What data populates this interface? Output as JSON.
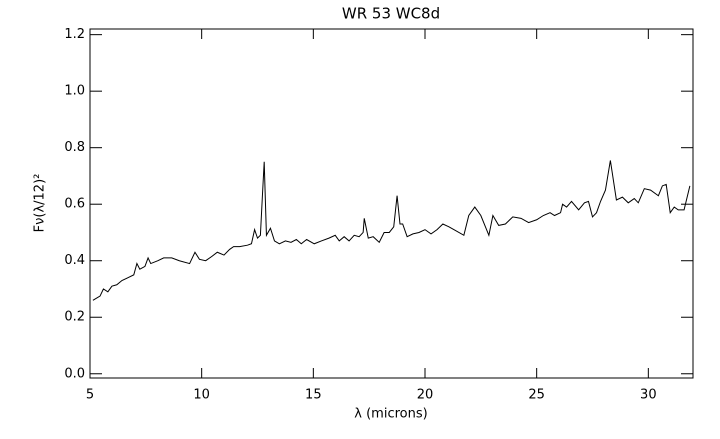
{
  "chart_data": {
    "type": "line",
    "title": "WR 53 WC8d",
    "x_label": "λ (microns)",
    "y_label": "Fν(λ/12)²",
    "xlim": [
      5,
      32
    ],
    "ylim": [
      -0.015,
      1.22
    ],
    "xticks": [
      5,
      10,
      15,
      20,
      25,
      30
    ],
    "yticks": [
      {
        "value": 0,
        "label": "0.0"
      },
      0.2,
      0.4,
      0.6,
      0.8,
      {
        "value": 1,
        "label": "1.0"
      },
      1.2
    ],
    "color": "#000000",
    "x": [
      5.13,
      5.45,
      5.6,
      5.8,
      5.98,
      6.2,
      6.43,
      6.7,
      6.96,
      7.1,
      7.23,
      7.46,
      7.6,
      7.72,
      8.04,
      8.3,
      8.66,
      9.0,
      9.46,
      9.7,
      9.9,
      10.18,
      10.45,
      10.7,
      11.0,
      11.25,
      11.43,
      11.7,
      12.05,
      12.23,
      12.37,
      12.5,
      12.63,
      12.72,
      12.8,
      12.9,
      13.08,
      13.26,
      13.48,
      13.75,
      14.0,
      14.24,
      14.46,
      14.7,
      15.04,
      15.36,
      15.7,
      15.98,
      16.16,
      16.38,
      16.6,
      16.83,
      17.05,
      17.23,
      17.28,
      17.46,
      17.68,
      17.95,
      18.17,
      18.4,
      18.6,
      18.75,
      18.88,
      19.0,
      19.2,
      19.46,
      19.73,
      20.0,
      20.27,
      20.54,
      20.8,
      21.07,
      21.3,
      21.74,
      21.96,
      22.23,
      22.5,
      22.86,
      23.04,
      23.3,
      23.6,
      23.93,
      24.3,
      24.64,
      25.0,
      25.3,
      25.6,
      25.8,
      26.07,
      26.16,
      26.34,
      26.56,
      26.88,
      27.14,
      27.32,
      27.5,
      27.68,
      27.86,
      28.08,
      28.3,
      28.57,
      28.84,
      29.1,
      29.37,
      29.55,
      29.82,
      30.1,
      30.45,
      30.63,
      30.8,
      30.98,
      31.16,
      31.34,
      31.6,
      31.86
    ],
    "values": [
      0.26,
      0.275,
      0.3,
      0.29,
      0.31,
      0.315,
      0.33,
      0.34,
      0.35,
      0.39,
      0.37,
      0.38,
      0.41,
      0.39,
      0.4,
      0.41,
      0.41,
      0.4,
      0.39,
      0.43,
      0.405,
      0.4,
      0.415,
      0.43,
      0.42,
      0.44,
      0.45,
      0.45,
      0.455,
      0.46,
      0.51,
      0.48,
      0.49,
      0.63,
      0.75,
      0.49,
      0.515,
      0.47,
      0.46,
      0.47,
      0.465,
      0.475,
      0.46,
      0.475,
      0.46,
      0.47,
      0.48,
      0.49,
      0.47,
      0.485,
      0.47,
      0.49,
      0.485,
      0.5,
      0.55,
      0.48,
      0.485,
      0.465,
      0.5,
      0.5,
      0.52,
      0.63,
      0.53,
      0.53,
      0.485,
      0.495,
      0.5,
      0.51,
      0.495,
      0.51,
      0.53,
      0.52,
      0.51,
      0.49,
      0.56,
      0.59,
      0.56,
      0.49,
      0.56,
      0.525,
      0.53,
      0.555,
      0.55,
      0.535,
      0.545,
      0.56,
      0.57,
      0.56,
      0.57,
      0.6,
      0.59,
      0.61,
      0.58,
      0.605,
      0.61,
      0.555,
      0.57,
      0.61,
      0.65,
      0.755,
      0.615,
      0.625,
      0.605,
      0.62,
      0.605,
      0.655,
      0.65,
      0.63,
      0.665,
      0.67,
      0.57,
      0.59,
      0.58,
      0.58,
      0.665
    ]
  }
}
